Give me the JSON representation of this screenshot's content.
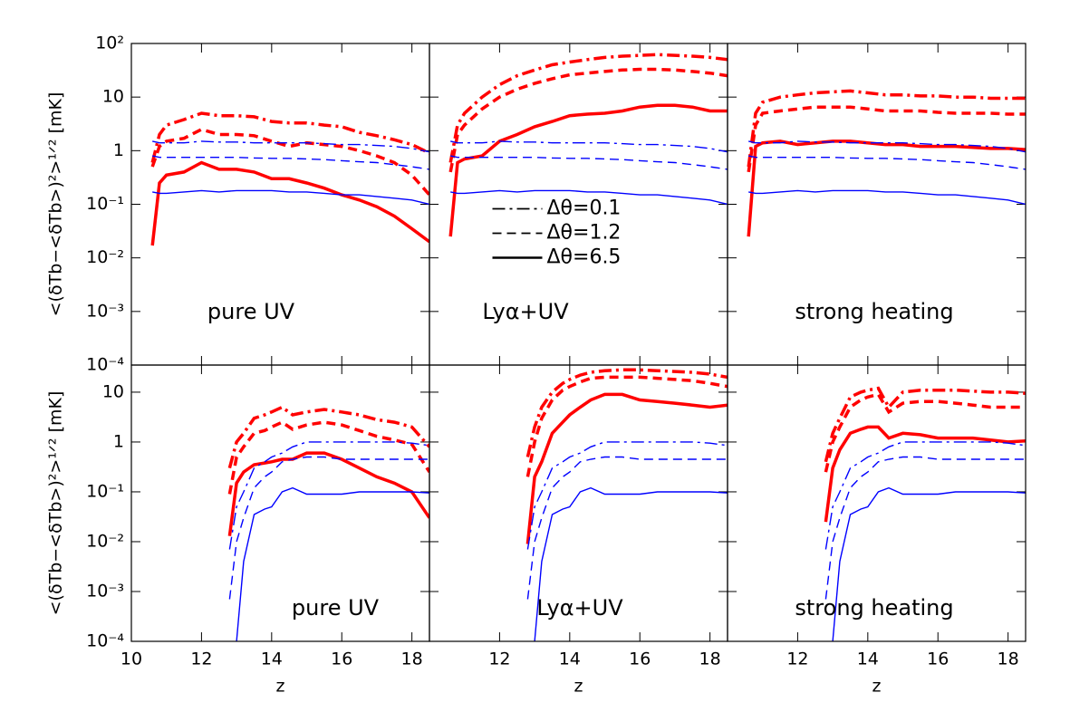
{
  "chart_data": [
    {
      "type": "line",
      "annotation": "pure UV",
      "ylabel": "<(δTb−<δTb>)²>¹ᐟ² [mK]",
      "log_y": true,
      "xlim": [
        10,
        18.5
      ],
      "ylim": [
        0.0001,
        100
      ],
      "yticks": [
        {
          "value": 0.0001,
          "label": "10⁻⁴"
        },
        {
          "value": 0.001,
          "label": "10⁻³"
        },
        {
          "value": 0.01,
          "label": "10⁻²"
        },
        {
          "value": 0.1,
          "label": "10⁻¹"
        },
        1,
        10,
        {
          "value": 100,
          "label": "10²"
        }
      ],
      "x": [
        10.6,
        10.8,
        11,
        11.5,
        12,
        12.5,
        13,
        13.5,
        14,
        14.5,
        15,
        15.5,
        16,
        16.5,
        17,
        17.5,
        18,
        18.5
      ],
      "series": [
        {
          "color": "#ff0000",
          "dash": "dashdot",
          "values": [
            0.6,
            2.0,
            3,
            3.8,
            5,
            4.5,
            4.5,
            4.3,
            3.5,
            3.3,
            3.3,
            3,
            2.8,
            2.2,
            1.9,
            1.6,
            1.3,
            0.9
          ]
        },
        {
          "color": "#ff0000",
          "dash": "dashed",
          "values": [
            0.5,
            1.2,
            1.5,
            1.7,
            2.5,
            2.0,
            2.0,
            1.9,
            1.5,
            1.2,
            1.4,
            1.3,
            1.2,
            1.0,
            0.8,
            0.6,
            0.35,
            0.15
          ]
        },
        {
          "color": "#ff0000",
          "dash": "solid",
          "values": [
            0.017,
            0.25,
            0.35,
            0.4,
            0.6,
            0.45,
            0.45,
            0.4,
            0.3,
            0.3,
            0.25,
            0.2,
            0.15,
            0.12,
            0.09,
            0.06,
            0.035,
            0.02
          ]
        },
        {
          "color": "#0000ff",
          "dash": "dashdot",
          "values": [
            1.5,
            1.4,
            1.4,
            1.4,
            1.5,
            1.45,
            1.45,
            1.4,
            1.4,
            1.4,
            1.4,
            1.35,
            1.3,
            1.3,
            1.25,
            1.2,
            1.1,
            0.95
          ]
        },
        {
          "color": "#0000ff",
          "dash": "dashed",
          "values": [
            0.8,
            0.75,
            0.75,
            0.75,
            0.75,
            0.75,
            0.75,
            0.73,
            0.72,
            0.72,
            0.7,
            0.68,
            0.65,
            0.62,
            0.6,
            0.55,
            0.5,
            0.45
          ]
        },
        {
          "color": "#0000ff",
          "dash": "solid",
          "values": [
            0.17,
            0.16,
            0.16,
            0.17,
            0.18,
            0.17,
            0.18,
            0.18,
            0.18,
            0.17,
            0.17,
            0.16,
            0.15,
            0.15,
            0.14,
            0.13,
            0.12,
            0.1
          ]
        }
      ]
    },
    {
      "type": "line",
      "annotation": "Lyα+UV",
      "log_y": true,
      "legend": "center",
      "xlim": [
        10,
        18.5
      ],
      "ylim": [
        0.0001,
        100
      ],
      "x": [
        10.6,
        10.8,
        11,
        11.5,
        12,
        12.5,
        13,
        13.5,
        14,
        14.5,
        15,
        15.5,
        16,
        16.5,
        17,
        17.5,
        18,
        18.5
      ],
      "series": [
        {
          "name": "Δθ=0.1",
          "color": "#ff0000",
          "dash": "dashdot",
          "values": [
            0.6,
            3,
            5,
            10,
            17,
            25,
            32,
            40,
            45,
            50,
            55,
            58,
            60,
            62,
            60,
            58,
            55,
            50
          ]
        },
        {
          "name": "Δθ=1.2",
          "color": "#ff0000",
          "dash": "dashed",
          "values": [
            0.4,
            2,
            3,
            6,
            10,
            14,
            18,
            22,
            26,
            28,
            30,
            32,
            33,
            33,
            32,
            30,
            28,
            25
          ]
        },
        {
          "name": "Δθ=6.5",
          "color": "#ff0000",
          "dash": "solid",
          "values": [
            0.025,
            0.6,
            0.7,
            0.8,
            1.5,
            2.0,
            2.8,
            3.5,
            4.5,
            4.8,
            5,
            5.5,
            6.5,
            7,
            7,
            6.5,
            5.5,
            5.5
          ]
        },
        {
          "color": "#0000ff",
          "dash": "dashdot",
          "values": [
            1.5,
            1.4,
            1.4,
            1.4,
            1.5,
            1.45,
            1.45,
            1.4,
            1.4,
            1.4,
            1.4,
            1.35,
            1.3,
            1.3,
            1.25,
            1.2,
            1.1,
            0.95
          ]
        },
        {
          "color": "#0000ff",
          "dash": "dashed",
          "values": [
            0.8,
            0.75,
            0.75,
            0.75,
            0.75,
            0.75,
            0.75,
            0.73,
            0.72,
            0.72,
            0.7,
            0.68,
            0.65,
            0.62,
            0.6,
            0.55,
            0.5,
            0.45
          ]
        },
        {
          "color": "#0000ff",
          "dash": "solid",
          "values": [
            0.17,
            0.16,
            0.16,
            0.17,
            0.18,
            0.17,
            0.18,
            0.18,
            0.18,
            0.17,
            0.17,
            0.16,
            0.15,
            0.15,
            0.14,
            0.13,
            0.12,
            0.1
          ]
        }
      ]
    },
    {
      "type": "line",
      "annotation": "strong heating",
      "log_y": true,
      "xlim": [
        10,
        18.5
      ],
      "ylim": [
        0.0001,
        100
      ],
      "x": [
        10.6,
        10.8,
        11,
        11.5,
        12,
        12.5,
        13,
        13.5,
        14,
        14.5,
        15,
        15.5,
        16,
        16.5,
        17,
        17.5,
        18,
        18.5
      ],
      "series": [
        {
          "color": "#ff0000",
          "dash": "dashdot",
          "values": [
            0.5,
            5,
            8,
            10,
            11,
            12,
            12.5,
            13,
            12,
            11,
            11,
            10.5,
            10.5,
            10,
            10,
            9.5,
            9.5,
            9.5
          ]
        },
        {
          "color": "#ff0000",
          "dash": "dashed",
          "values": [
            0.4,
            3,
            5,
            5.5,
            6,
            6.5,
            6.5,
            6.5,
            6,
            5.5,
            5.5,
            5.5,
            5.2,
            5,
            5,
            5,
            4.8,
            4.8
          ]
        },
        {
          "color": "#ff0000",
          "dash": "solid",
          "values": [
            0.025,
            1.2,
            1.4,
            1.5,
            1.3,
            1.4,
            1.5,
            1.5,
            1.4,
            1.3,
            1.3,
            1.2,
            1.2,
            1.2,
            1.15,
            1.1,
            1.1,
            1.05
          ]
        },
        {
          "color": "#0000ff",
          "dash": "dashdot",
          "values": [
            1.5,
            1.4,
            1.4,
            1.4,
            1.5,
            1.45,
            1.45,
            1.4,
            1.4,
            1.4,
            1.4,
            1.35,
            1.3,
            1.3,
            1.25,
            1.2,
            1.1,
            0.95
          ]
        },
        {
          "color": "#0000ff",
          "dash": "dashed",
          "values": [
            0.8,
            0.75,
            0.75,
            0.75,
            0.75,
            0.75,
            0.75,
            0.73,
            0.72,
            0.72,
            0.7,
            0.68,
            0.65,
            0.62,
            0.6,
            0.55,
            0.5,
            0.45
          ]
        },
        {
          "color": "#0000ff",
          "dash": "solid",
          "values": [
            0.17,
            0.16,
            0.16,
            0.17,
            0.18,
            0.17,
            0.18,
            0.18,
            0.18,
            0.17,
            0.17,
            0.16,
            0.15,
            0.15,
            0.14,
            0.13,
            0.12,
            0.1
          ]
        }
      ]
    },
    {
      "type": "line",
      "annotation": "pure UV",
      "ylabel": "<(δTb−<δTb>)²>¹ᐟ² [mK]",
      "xlabel": "z",
      "log_y": true,
      "xlim": [
        10,
        18.5
      ],
      "ylim": [
        0.0001,
        35
      ],
      "xticks": [
        10,
        12,
        14,
        16,
        18
      ],
      "yticks": [
        {
          "value": 0.0001,
          "label": "10⁻⁴"
        },
        {
          "value": 0.001,
          "label": "10⁻³"
        },
        {
          "value": 0.01,
          "label": "10⁻²"
        },
        {
          "value": 0.1,
          "label": "10⁻¹"
        },
        1,
        10
      ],
      "x": [
        12.8,
        13,
        13.2,
        13.5,
        13.8,
        14,
        14.3,
        14.6,
        15,
        15.5,
        16,
        16.5,
        17,
        17.5,
        18,
        18.5
      ],
      "series": [
        {
          "color": "#ff0000",
          "dash": "dashdot",
          "values": [
            0.3,
            1,
            1.5,
            3,
            3.5,
            4,
            5,
            3.5,
            4,
            4.5,
            4,
            3.5,
            2.8,
            2.5,
            2,
            0.8
          ]
        },
        {
          "color": "#ff0000",
          "dash": "dashed",
          "values": [
            0.09,
            0.5,
            0.8,
            1.5,
            1.7,
            2,
            2.5,
            1.8,
            2.2,
            2.5,
            2.2,
            1.7,
            1.3,
            1.1,
            0.9,
            0.25
          ]
        },
        {
          "color": "#ff0000",
          "dash": "solid",
          "values": [
            0.013,
            0.15,
            0.25,
            0.35,
            0.38,
            0.4,
            0.45,
            0.45,
            0.6,
            0.6,
            0.45,
            0.3,
            0.2,
            0.15,
            0.1,
            0.03
          ]
        },
        {
          "color": "#0000ff",
          "dash": "dashdot",
          "values": [
            0.007,
            0.05,
            0.1,
            0.3,
            0.4,
            0.5,
            0.6,
            0.8,
            1,
            1,
            1,
            1,
            1,
            1,
            0.95,
            0.85
          ]
        },
        {
          "color": "#0000ff",
          "dash": "dashed",
          "values": [
            0.0007,
            0.01,
            0.03,
            0.12,
            0.2,
            0.25,
            0.4,
            0.45,
            0.5,
            0.5,
            0.45,
            0.45,
            0.45,
            0.45,
            0.45,
            0.45
          ]
        },
        {
          "color": "#0000ff",
          "dash": "solid",
          "values": [
            null,
            0.0001,
            0.004,
            0.035,
            0.045,
            0.05,
            0.1,
            0.12,
            0.09,
            0.09,
            0.09,
            0.1,
            0.1,
            0.1,
            0.1,
            0.095
          ]
        }
      ]
    },
    {
      "type": "line",
      "annotation": "Lyα+UV",
      "xlabel": "z",
      "log_y": true,
      "xlim": [
        10,
        18.5
      ],
      "ylim": [
        0.0001,
        35
      ],
      "xticks": [
        12,
        14,
        16,
        18
      ],
      "x": [
        12.8,
        13,
        13.2,
        13.5,
        13.8,
        14,
        14.3,
        14.6,
        15,
        15.5,
        16,
        16.5,
        17,
        17.5,
        18,
        18.5
      ],
      "series": [
        {
          "color": "#ff0000",
          "dash": "dashdot",
          "values": [
            0.5,
            2,
            5,
            10,
            15,
            18,
            22,
            25,
            27,
            28,
            28,
            27,
            26,
            25,
            23,
            20
          ]
        },
        {
          "color": "#ff0000",
          "dash": "dashed",
          "values": [
            0.2,
            1,
            3,
            7,
            11,
            13,
            16,
            19,
            20,
            20,
            20,
            19,
            18,
            17,
            15,
            13
          ]
        },
        {
          "color": "#ff0000",
          "dash": "solid",
          "values": [
            0.009,
            0.2,
            0.4,
            1.5,
            2.5,
            3.5,
            5,
            7,
            9,
            9,
            7,
            6.5,
            6,
            5.5,
            5,
            5.5
          ]
        },
        {
          "color": "#0000ff",
          "dash": "dashdot",
          "values": [
            0.007,
            0.05,
            0.1,
            0.3,
            0.4,
            0.5,
            0.6,
            0.8,
            1,
            1,
            1,
            1,
            1,
            1,
            0.95,
            0.85
          ]
        },
        {
          "color": "#0000ff",
          "dash": "dashed",
          "values": [
            0.0007,
            0.01,
            0.03,
            0.12,
            0.2,
            0.25,
            0.4,
            0.45,
            0.5,
            0.5,
            0.45,
            0.45,
            0.45,
            0.45,
            0.45,
            0.45
          ]
        },
        {
          "color": "#0000ff",
          "dash": "solid",
          "values": [
            null,
            0.0001,
            0.004,
            0.035,
            0.045,
            0.05,
            0.1,
            0.12,
            0.09,
            0.09,
            0.09,
            0.1,
            0.1,
            0.1,
            0.1,
            0.095
          ]
        }
      ]
    },
    {
      "type": "line",
      "annotation": "strong heating",
      "xlabel": "z",
      "log_y": true,
      "xlim": [
        10,
        18.5
      ],
      "ylim": [
        0.0001,
        35
      ],
      "xticks": [
        12,
        14,
        16,
        18
      ],
      "x": [
        12.8,
        13,
        13.2,
        13.5,
        13.8,
        14,
        14.3,
        14.6,
        15,
        15.5,
        16,
        16.5,
        17,
        17.5,
        18,
        18.5
      ],
      "series": [
        {
          "color": "#ff0000",
          "dash": "dashdot",
          "values": [
            0.4,
            1.5,
            3,
            8,
            10,
            11,
            12,
            5,
            10,
            11,
            11,
            11,
            10.5,
            10,
            10,
            9.5
          ]
        },
        {
          "color": "#ff0000",
          "dash": "dashed",
          "values": [
            0.25,
            1,
            2,
            5,
            7,
            8,
            9,
            4,
            6,
            6.5,
            6.5,
            6,
            5.5,
            5,
            5,
            5
          ]
        },
        {
          "color": "#ff0000",
          "dash": "solid",
          "values": [
            0.025,
            0.3,
            0.7,
            1.5,
            1.8,
            2,
            2,
            1.2,
            1.5,
            1.4,
            1.2,
            1.2,
            1.2,
            1.1,
            1,
            1.05
          ]
        },
        {
          "color": "#0000ff",
          "dash": "dashdot",
          "values": [
            0.007,
            0.05,
            0.1,
            0.3,
            0.4,
            0.5,
            0.6,
            0.8,
            1,
            1,
            1,
            1,
            1,
            1,
            0.95,
            0.85
          ]
        },
        {
          "color": "#0000ff",
          "dash": "dashed",
          "values": [
            0.0007,
            0.01,
            0.03,
            0.12,
            0.2,
            0.25,
            0.4,
            0.45,
            0.5,
            0.5,
            0.45,
            0.45,
            0.45,
            0.45,
            0.45,
            0.45
          ]
        },
        {
          "color": "#0000ff",
          "dash": "solid",
          "values": [
            null,
            0.0001,
            0.004,
            0.035,
            0.045,
            0.05,
            0.1,
            0.12,
            0.09,
            0.09,
            0.09,
            0.1,
            0.1,
            0.1,
            0.1,
            0.095
          ]
        }
      ]
    }
  ]
}
